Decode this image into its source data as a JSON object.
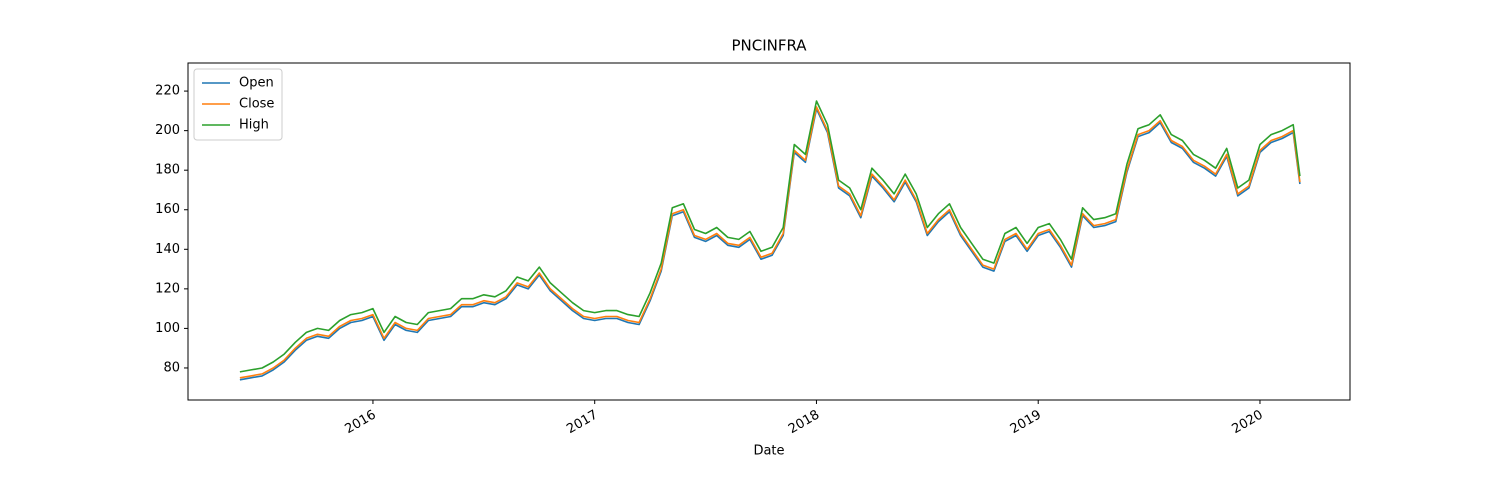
{
  "chart_data": {
    "type": "line",
    "title": "PNCINFRA",
    "xlabel": "Date",
    "x": [
      2015.4,
      2015.45,
      2015.5,
      2015.55,
      2015.6,
      2015.65,
      2015.7,
      2015.75,
      2015.8,
      2015.85,
      2015.9,
      2015.95,
      2016.0,
      2016.05,
      2016.1,
      2016.15,
      2016.2,
      2016.25,
      2016.3,
      2016.35,
      2016.4,
      2016.45,
      2016.5,
      2016.55,
      2016.6,
      2016.65,
      2016.7,
      2016.75,
      2016.8,
      2016.85,
      2016.9,
      2016.95,
      2017.0,
      2017.05,
      2017.1,
      2017.15,
      2017.2,
      2017.25,
      2017.3,
      2017.35,
      2017.4,
      2017.45,
      2017.5,
      2017.55,
      2017.6,
      2017.65,
      2017.7,
      2017.75,
      2017.8,
      2017.85,
      2017.9,
      2017.95,
      2018.0,
      2018.05,
      2018.1,
      2018.15,
      2018.2,
      2018.25,
      2018.3,
      2018.35,
      2018.4,
      2018.45,
      2018.5,
      2018.55,
      2018.6,
      2018.65,
      2018.7,
      2018.75,
      2018.8,
      2018.85,
      2018.9,
      2018.95,
      2019.0,
      2019.05,
      2019.1,
      2019.15,
      2019.2,
      2019.25,
      2019.3,
      2019.35,
      2019.4,
      2019.45,
      2019.5,
      2019.55,
      2019.6,
      2019.65,
      2019.7,
      2019.75,
      2019.8,
      2019.85,
      2019.9,
      2019.95,
      2020.0,
      2020.05,
      2020.1,
      2020.15,
      2020.18
    ],
    "series": [
      {
        "name": "Open",
        "color": "#1f77b4",
        "values": [
          74,
          75,
          76,
          79,
          83,
          89,
          94,
          96,
          95,
          100,
          103,
          104,
          106,
          94,
          102,
          99,
          98,
          104,
          105,
          106,
          111,
          111,
          113,
          112,
          115,
          122,
          120,
          127,
          119,
          114,
          109,
          105,
          104,
          105,
          105,
          103,
          102,
          114,
          129,
          157,
          159,
          146,
          144,
          147,
          142,
          141,
          145,
          135,
          137,
          147,
          189,
          184,
          211,
          199,
          171,
          167,
          156,
          177,
          171,
          164,
          174,
          164,
          147,
          154,
          159,
          147,
          139,
          131,
          129,
          144,
          147,
          139,
          147,
          149,
          141,
          131,
          157,
          151,
          152,
          154,
          179,
          197,
          199,
          204,
          194,
          191,
          184,
          181,
          177,
          187,
          167,
          171,
          189,
          194,
          196,
          199,
          173
        ]
      },
      {
        "name": "Close",
        "color": "#ff7f0e",
        "values": [
          75,
          76,
          77,
          80,
          84,
          90,
          95,
          97,
          96,
          101,
          104,
          105,
          107,
          95,
          103,
          100,
          99,
          105,
          106,
          107,
          112,
          112,
          114,
          113,
          116,
          123,
          121,
          128,
          120,
          115,
          110,
          106,
          105,
          106,
          106,
          104,
          103,
          115,
          130,
          158,
          160,
          147,
          145,
          148,
          143,
          142,
          146,
          136,
          138,
          148,
          190,
          185,
          212,
          200,
          172,
          168,
          157,
          178,
          172,
          165,
          175,
          165,
          148,
          155,
          160,
          148,
          140,
          132,
          130,
          145,
          148,
          140,
          148,
          150,
          142,
          132,
          158,
          152,
          153,
          155,
          180,
          198,
          200,
          205,
          195,
          192,
          185,
          182,
          178,
          188,
          168,
          172,
          190,
          195,
          197,
          200,
          174
        ]
      },
      {
        "name": "High",
        "color": "#2ca02c",
        "values": [
          78,
          79,
          80,
          83,
          87,
          93,
          98,
          100,
          99,
          104,
          107,
          108,
          110,
          98,
          106,
          103,
          102,
          108,
          109,
          110,
          115,
          115,
          117,
          116,
          119,
          126,
          124,
          131,
          123,
          118,
          113,
          109,
          108,
          109,
          109,
          107,
          106,
          118,
          133,
          161,
          163,
          150,
          148,
          151,
          146,
          145,
          149,
          139,
          141,
          151,
          193,
          188,
          215,
          203,
          175,
          171,
          160,
          181,
          175,
          168,
          178,
          168,
          151,
          158,
          163,
          151,
          143,
          135,
          133,
          148,
          151,
          143,
          151,
          153,
          145,
          135,
          161,
          155,
          156,
          158,
          183,
          201,
          203,
          208,
          198,
          195,
          188,
          185,
          181,
          191,
          171,
          175,
          193,
          198,
          200,
          203,
          177
        ]
      }
    ],
    "xlim": [
      2015.166,
      2020.406
    ],
    "xticks": [
      2016,
      2017,
      2018,
      2019,
      2020
    ],
    "ylim": [
      63.8,
      234.2
    ],
    "yticks": [
      80,
      100,
      120,
      140,
      160,
      180,
      200,
      220
    ],
    "legend": "upper left",
    "grid": false
  }
}
